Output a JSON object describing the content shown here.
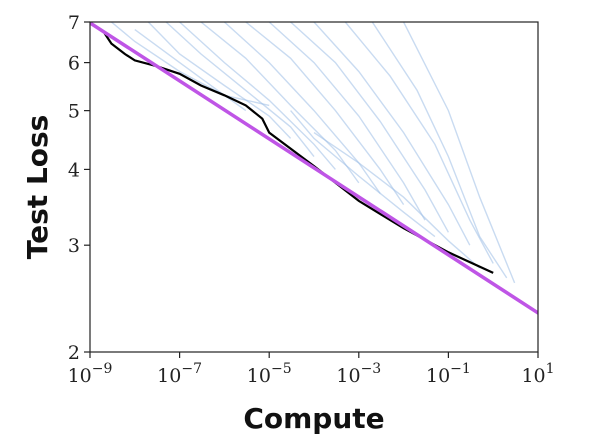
{
  "chart_data": {
    "type": "line",
    "title": "",
    "xlabel": "Compute",
    "ylabel": "Test Loss",
    "xscale": "log",
    "yscale": "log",
    "xlim": [
      1e-09,
      10
    ],
    "ylim": [
      2,
      7
    ],
    "grid": false,
    "legend": "none",
    "x_ticks": [
      {
        "value": 1e-09,
        "label": "10",
        "exp": "−9"
      },
      {
        "value": 1e-07,
        "label": "10",
        "exp": "−7"
      },
      {
        "value": 1e-05,
        "label": "10",
        "exp": "−5"
      },
      {
        "value": 0.001,
        "label": "10",
        "exp": "−3"
      },
      {
        "value": 0.1,
        "label": "10",
        "exp": "−1"
      },
      {
        "value": 10,
        "label": "10",
        "exp": "1"
      }
    ],
    "y_ticks": [
      {
        "value": 2,
        "label": "2"
      },
      {
        "value": 3,
        "label": "3"
      },
      {
        "value": 4,
        "label": "4"
      },
      {
        "value": 5,
        "label": "5"
      },
      {
        "value": 6,
        "label": "6"
      },
      {
        "value": 7,
        "label": "7"
      }
    ],
    "colors": {
      "runs": "#9dbde6",
      "frontier": "#000000",
      "fit": "#bf55e6"
    },
    "series": [
      {
        "style": "frontier",
        "x": [
          2e-09,
          3e-09,
          6e-09,
          1e-08,
          3e-08,
          1e-07,
          3e-07,
          1e-06,
          3e-06,
          7e-06,
          1e-05,
          0.0001,
          0.001,
          0.01,
          0.1,
          1
        ],
        "y": [
          6.75,
          6.45,
          6.2,
          6.05,
          5.92,
          5.75,
          5.5,
          5.3,
          5.1,
          4.85,
          4.6,
          4.05,
          3.55,
          3.2,
          2.92,
          2.7
        ]
      },
      {
        "style": "fit",
        "x": [
          8e-10,
          10
        ],
        "y": [
          7.05,
          2.32
        ]
      },
      {
        "style": "run",
        "x": [
          3e-09,
          1e-08,
          1e-07,
          1e-06,
          1e-05
        ],
        "y": [
          7,
          6.5,
          5.8,
          5.3,
          5.1
        ]
      },
      {
        "style": "run",
        "x": [
          2e-08,
          1e-07,
          1e-06,
          1e-05,
          3e-05
        ],
        "y": [
          7,
          6.2,
          5.5,
          4.9,
          4.5
        ]
      },
      {
        "style": "run",
        "x": [
          5e-08,
          3e-07,
          3e-06,
          3e-05,
          0.0001
        ],
        "y": [
          7,
          6.2,
          5.4,
          4.7,
          4.2
        ]
      },
      {
        "style": "run",
        "x": [
          1e-07,
          1e-06,
          1e-05,
          0.0001,
          0.0003
        ],
        "y": [
          7,
          6.0,
          5.2,
          4.4,
          4.0
        ]
      },
      {
        "style": "run",
        "x": [
          3e-07,
          3e-06,
          3e-05,
          0.0003,
          0.001
        ],
        "y": [
          7,
          6.1,
          5.1,
          4.3,
          3.8
        ]
      },
      {
        "style": "run",
        "x": [
          1e-06,
          1e-05,
          0.0001,
          0.001,
          0.003
        ],
        "y": [
          7,
          6.0,
          5.0,
          4.1,
          3.65
        ]
      },
      {
        "style": "run",
        "x": [
          3e-06,
          3e-05,
          0.0003,
          0.003,
          0.01
        ],
        "y": [
          7,
          6.1,
          5.0,
          4.0,
          3.5
        ]
      },
      {
        "style": "run",
        "x": [
          1e-05,
          0.0001,
          0.001,
          0.01,
          0.03
        ],
        "y": [
          7,
          6.0,
          4.9,
          3.8,
          3.3
        ]
      },
      {
        "style": "run",
        "x": [
          3e-05,
          0.0003,
          0.003,
          0.03,
          0.1
        ],
        "y": [
          7,
          6.0,
          4.8,
          3.7,
          3.15
        ]
      },
      {
        "style": "run",
        "x": [
          0.0001,
          0.001,
          0.01,
          0.1,
          0.3
        ],
        "y": [
          7,
          5.8,
          4.6,
          3.5,
          3.0
        ]
      },
      {
        "style": "run",
        "x": [
          0.0005,
          0.005,
          0.05,
          0.3,
          1
        ],
        "y": [
          7,
          5.7,
          4.4,
          3.3,
          2.8
        ]
      },
      {
        "style": "run",
        "x": [
          0.002,
          0.02,
          0.1,
          0.5,
          2
        ],
        "y": [
          7,
          5.4,
          4.2,
          3.1,
          2.65
        ]
      },
      {
        "style": "run",
        "x": [
          0.01,
          0.1,
          0.5,
          3
        ],
        "y": [
          7,
          5.0,
          3.6,
          2.6
        ]
      },
      {
        "style": "run",
        "x": [
          1e-08,
          1e-07,
          1e-06,
          3e-06
        ],
        "y": [
          6.8,
          6.0,
          5.3,
          5.0
        ]
      },
      {
        "style": "run",
        "x": [
          3e-05,
          0.0001,
          0.001,
          0.01,
          0.05
        ],
        "y": [
          5.0,
          4.5,
          3.9,
          3.4,
          3.1
        ]
      },
      {
        "style": "run",
        "x": [
          0.0001,
          0.001,
          0.01,
          0.1,
          0.5
        ],
        "y": [
          4.6,
          4.1,
          3.6,
          3.05,
          2.75
        ]
      }
    ]
  }
}
